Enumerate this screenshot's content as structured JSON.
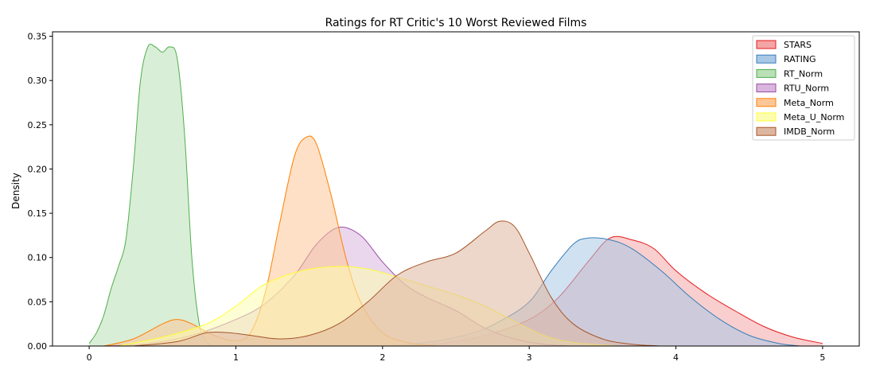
{
  "chart_data": {
    "type": "area",
    "title": "Ratings for RT Critic's 10 Worst Reviewed Films",
    "xlabel": "",
    "ylabel": "Density",
    "xlim": [
      -0.25,
      5.25
    ],
    "ylim": [
      0,
      0.355
    ],
    "xticks": [
      0,
      1,
      2,
      3,
      4,
      5
    ],
    "yticks": [
      0.0,
      0.05,
      0.1,
      0.15,
      0.2,
      0.25,
      0.3,
      0.35
    ],
    "ytick_labels": [
      "0.00",
      "0.05",
      "0.10",
      "0.15",
      "0.20",
      "0.25",
      "0.30",
      "0.35"
    ],
    "grid": false,
    "legend_position": "top-right",
    "series": [
      {
        "name": "STARS",
        "color": "#e41a1c",
        "fill": "#f4a5a5",
        "x": [
          2.1,
          2.4,
          2.7,
          3.0,
          3.2,
          3.4,
          3.55,
          3.7,
          3.85,
          4.0,
          4.2,
          4.4,
          4.6,
          4.8,
          5.0
        ],
        "y": [
          0.0,
          0.003,
          0.012,
          0.03,
          0.055,
          0.095,
          0.122,
          0.12,
          0.11,
          0.085,
          0.06,
          0.04,
          0.022,
          0.01,
          0.003
        ]
      },
      {
        "name": "RATING",
        "color": "#377eb8",
        "fill": "#a9c8e6",
        "x": [
          2.0,
          2.3,
          2.6,
          2.8,
          3.0,
          3.15,
          3.3,
          3.4,
          3.55,
          3.7,
          3.9,
          4.1,
          4.3,
          4.5,
          4.7,
          4.85
        ],
        "y": [
          0.0,
          0.004,
          0.014,
          0.028,
          0.05,
          0.085,
          0.115,
          0.122,
          0.12,
          0.11,
          0.085,
          0.055,
          0.03,
          0.012,
          0.003,
          0.0
        ]
      },
      {
        "name": "RT_Norm",
        "color": "#4daf4a",
        "fill": "#b9e0b7",
        "x": [
          0.0,
          0.05,
          0.1,
          0.15,
          0.2,
          0.25,
          0.3,
          0.35,
          0.4,
          0.45,
          0.5,
          0.55,
          0.6,
          0.65,
          0.7,
          0.75,
          0.8,
          0.85
        ],
        "y": [
          0.003,
          0.015,
          0.035,
          0.065,
          0.09,
          0.12,
          0.2,
          0.3,
          0.338,
          0.338,
          0.332,
          0.338,
          0.325,
          0.24,
          0.1,
          0.025,
          0.005,
          0.0
        ]
      },
      {
        "name": "RTU_Norm",
        "color": "#984ea3",
        "fill": "#d9b6de",
        "x": [
          0.1,
          0.4,
          0.7,
          1.0,
          1.2,
          1.4,
          1.55,
          1.7,
          1.85,
          2.0,
          2.15,
          2.3,
          2.5,
          2.7,
          2.9,
          3.1,
          3.3
        ],
        "y": [
          0.0,
          0.003,
          0.012,
          0.03,
          0.048,
          0.08,
          0.115,
          0.134,
          0.125,
          0.095,
          0.07,
          0.055,
          0.04,
          0.02,
          0.008,
          0.002,
          0.0
        ]
      },
      {
        "name": "Meta_Norm",
        "color": "#ff7f00",
        "fill": "#fdc797",
        "x": [
          0.1,
          0.3,
          0.5,
          0.6,
          0.7,
          0.85,
          1.0,
          1.1,
          1.2,
          1.3,
          1.4,
          1.48,
          1.55,
          1.65,
          1.75,
          1.85,
          2.0,
          2.2,
          2.4
        ],
        "y": [
          0.0,
          0.008,
          0.025,
          0.03,
          0.025,
          0.012,
          0.006,
          0.015,
          0.06,
          0.14,
          0.215,
          0.236,
          0.228,
          0.17,
          0.1,
          0.05,
          0.015,
          0.003,
          0.0
        ]
      },
      {
        "name": "Meta_U_Norm",
        "color": "#ffff33",
        "fill": "#fdfdb0",
        "x": [
          0.2,
          0.5,
          0.8,
          1.0,
          1.2,
          1.45,
          1.7,
          1.9,
          2.1,
          2.3,
          2.5,
          2.7,
          2.9,
          3.1,
          3.3,
          3.6
        ],
        "y": [
          0.0,
          0.01,
          0.025,
          0.045,
          0.07,
          0.085,
          0.09,
          0.087,
          0.078,
          0.068,
          0.058,
          0.045,
          0.028,
          0.012,
          0.004,
          0.0
        ]
      },
      {
        "name": "IMDB_Norm",
        "color": "#a65628",
        "fill": "#deb6a0",
        "x": [
          0.3,
          0.6,
          0.8,
          0.95,
          1.1,
          1.3,
          1.5,
          1.7,
          1.9,
          2.1,
          2.3,
          2.5,
          2.7,
          2.8,
          2.9,
          3.0,
          3.15,
          3.3,
          3.5,
          3.7,
          3.9
        ],
        "y": [
          0.0,
          0.005,
          0.015,
          0.015,
          0.012,
          0.008,
          0.012,
          0.025,
          0.05,
          0.08,
          0.095,
          0.105,
          0.13,
          0.141,
          0.135,
          0.105,
          0.055,
          0.025,
          0.008,
          0.002,
          0.0
        ]
      }
    ]
  }
}
